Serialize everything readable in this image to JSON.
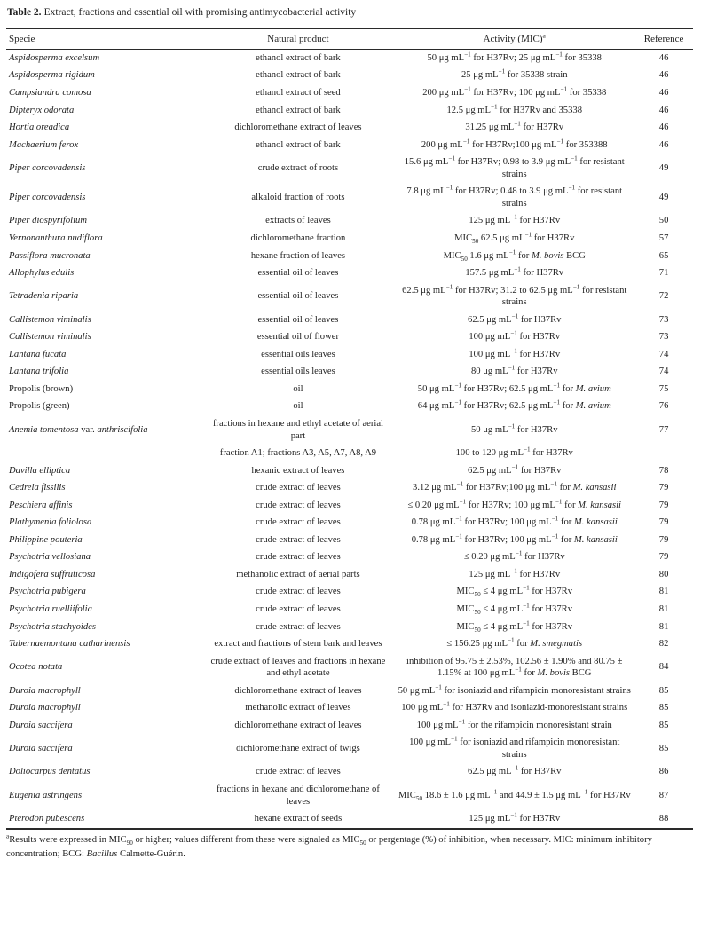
{
  "title": {
    "label": "Table 2.",
    "text": "Extract, fractions and essential oil with promising antimycobacterial activity"
  },
  "table": {
    "headers": [
      "Specie",
      "Natural product",
      "Activity (MIC)^a^",
      "Reference"
    ],
    "rows": [
      {
        "specie": "*Aspidosperma excelsum*",
        "product": "ethanol extract of bark",
        "activity": "50 μg mL^−1^ for H37Rv; 25 μg mL^−1^ for 35338",
        "ref": "46"
      },
      {
        "specie": "*Aspidosperma rigidum*",
        "product": "ethanol extract of bark",
        "activity": "25 μg mL^−1^ for 35338 strain",
        "ref": "46"
      },
      {
        "specie": "*Campsiandra comosa*",
        "product": "ethanol extract of seed",
        "activity": "200 μg mL^−1^ for H37Rv; 100 μg mL^−1^ for 35338",
        "ref": "46"
      },
      {
        "specie": "*Dipteryx odorata*",
        "product": "ethanol extract of bark",
        "activity": "12.5 μg mL^−1^ for H37Rv and 35338",
        "ref": "46"
      },
      {
        "specie": "*Hortia oreadica*",
        "product": "dichloromethane extract of leaves",
        "activity": "31.25 μg mL^−1^ for H37Rv",
        "ref": "46"
      },
      {
        "specie": "*Machaerium ferox*",
        "product": "ethanol extract of bark",
        "activity": "200 μg mL^−1^ for H37Rv;100 μg mL^−1^ for 353388",
        "ref": "46"
      },
      {
        "specie": "*Piper corcovadensis*",
        "product": "crude extract of roots",
        "activity": "15.6 μg mL^−1^ for H37Rv; 0.98 to 3.9 μg mL^−1^ for resistant strains",
        "ref": "49"
      },
      {
        "specie": "*Piper corcovadensis*",
        "product": "alkaloid fraction of roots",
        "activity": "7.8 μg mL^−1^ for H37Rv; 0.48 to 3.9 μg mL^−1^ for resistant strains",
        "ref": "49"
      },
      {
        "specie": "*Piper diospyrifolium*",
        "product": "extracts of leaves",
        "activity": "125 μg mL^−1^ for H37Rv",
        "ref": "50"
      },
      {
        "specie": "*Vernonanthura nudiflora*",
        "product": "dichloromethane fraction",
        "activity": "MIC~50~ 62.5 μg mL^−1^ for H37Rv",
        "ref": "57"
      },
      {
        "specie": "*Passiflora mucronata*",
        "product": "hexane fraction of leaves",
        "activity": "MIC~50~ 1.6 μg mL^−1^ for *M. bovis* BCG",
        "ref": "65"
      },
      {
        "specie": "*Allophylus edulis*",
        "product": "essential oil of leaves",
        "activity": "157.5 μg mL^−1^ for H37Rv",
        "ref": "71"
      },
      {
        "specie": "*Tetradenia riparia*",
        "product": "essential oil of leaves",
        "activity": "62.5 μg mL^−1^ for H37Rv; 31.2 to 62.5 μg mL^−1^ for resistant strains",
        "ref": "72"
      },
      {
        "specie": "*Callistemon viminalis*",
        "product": "essential oil of leaves",
        "activity": "62.5 μg mL^−1^ for H37Rv",
        "ref": "73"
      },
      {
        "specie": "*Callistemon viminalis*",
        "product": "essential oil of flower",
        "activity": "100 μg mL^−1^ for H37Rv",
        "ref": "73"
      },
      {
        "specie": "*Lantana fucata*",
        "product": "essential oils leaves",
        "activity": "100 μg mL^−1^ for H37Rv",
        "ref": "74"
      },
      {
        "specie": "*Lantana trifolia*",
        "product": "essential oils leaves",
        "activity": "80 μg mL^−1^ for H37Rv",
        "ref": "74"
      },
      {
        "specie": "Propolis (brown)",
        "product": "oil",
        "activity": "50 μg mL^−1^ for H37Rv; 62.5 μg mL^−1^ for *M. avium*",
        "ref": "75"
      },
      {
        "specie": "Propolis (green)",
        "product": "oil",
        "activity": "64 μg mL^−1^ for H37Rv; 62.5 μg mL^−1^ for *M. avium*",
        "ref": "76"
      },
      {
        "specie": "*Anemia tomentosa* var. *anthriscifolia*",
        "product": "fractions in hexane and ethyl acetate of aerial part",
        "activity": "50 μg mL^−1^ for H37Rv",
        "ref": "77"
      },
      {
        "specie": "",
        "product": "fraction A1; fractions A3, A5, A7, A8, A9",
        "activity": "100 to 120 μg mL^−1^ for H37Rv",
        "ref": ""
      },
      {
        "specie": "*Davilla elliptica*",
        "product": "hexanic extract of leaves",
        "activity": "62.5 μg mL^−1^ for H37Rv",
        "ref": "78"
      },
      {
        "specie": "*Cedrela fissilis*",
        "product": "crude extract of leaves",
        "activity": "3.12 μg mL^−1^ for H37Rv;100 μg mL^−1^ for *M. kansasii*",
        "ref": "79"
      },
      {
        "specie": "*Peschiera affinis*",
        "product": "crude extract of leaves",
        "activity": "≤ 0.20 μg mL^−1^ for H37Rv; 100 μg mL^−1^ for *M. kansasii*",
        "ref": "79"
      },
      {
        "specie": "*Plathymenia foliolosa*",
        "product": "crude extract of leaves",
        "activity": "0.78 μg mL^−1^ for H37Rv; 100 μg mL^−1^ for *M. kansasii*",
        "ref": "79"
      },
      {
        "specie": "*Philippine pouteria*",
        "product": "crude extract of leaves",
        "activity": "0.78 μg mL^−1^ for H37Rv; 100 μg mL^−1^ for *M. kansasii*",
        "ref": "79"
      },
      {
        "specie": "*Psychotria vellosiana*",
        "product": "crude extract of leaves",
        "activity": "≤ 0.20 μg mL^−1^ for H37Rv",
        "ref": "79"
      },
      {
        "specie": "*Indigofera suffruticosa*",
        "product": "methanolic extract of aerial parts",
        "activity": "125 μg mL^−1^ for H37Rv",
        "ref": "80"
      },
      {
        "specie": "*Psychotria pubigera*",
        "product": "crude extract of leaves",
        "activity": "MIC~50~ ≤ 4 μg mL^−1^ for H37Rv",
        "ref": "81"
      },
      {
        "specie": "*Psychotria ruelliifolia*",
        "product": "crude extract of leaves",
        "activity": "MIC~50~ ≤ 4 μg mL^−1^ for H37Rv",
        "ref": "81"
      },
      {
        "specie": "*Psychotria stachyoides*",
        "product": "crude extract of leaves",
        "activity": "MIC~50~ ≤ 4 μg mL^−1^ for H37Rv",
        "ref": "81"
      },
      {
        "specie": "*Tabernaemontana catharinensis*",
        "product": "extract and fractions of stem bark and leaves",
        "activity": "≤ 156.25 μg mL^−1^ for *M. smegmatis*",
        "ref": "82"
      },
      {
        "specie": "*Ocotea notata*",
        "product": "crude extract of leaves and fractions in hexane and ethyl acetate",
        "activity": "inhibition of 95.75 ± 2.53%, 102.56 ± 1.90% and 80.75 ± 1.15% at 100 μg mL^−1^ for *M. bovis* BCG",
        "ref": "84"
      },
      {
        "specie": "*Duroia macrophyll*",
        "product": "dichloromethane extract of leaves",
        "activity": "50 μg mL^−1^ for isoniazid and rifampicin monoresistant strains",
        "ref": "85"
      },
      {
        "specie": "*Duroia macrophyll*",
        "product": "methanolic extract of leaves",
        "activity": "100 μg mL^−1^ for H37Rv and isoniazid-monoresistant strains",
        "ref": "85"
      },
      {
        "specie": "*Duroia saccifera*",
        "product": "dichloromethane extract of leaves",
        "activity": "100 μg mL^−1^ for the rifampicin monoresistant strain",
        "ref": "85"
      },
      {
        "specie": "*Duroia saccifera*",
        "product": "dichloromethane extract of twigs",
        "activity": "100 μg mL^−1^ for isoniazid and rifampicin monoresistant strains",
        "ref": "85"
      },
      {
        "specie": "*Doliocarpus dentatus*",
        "product": "crude extract of leaves",
        "activity": "62.5 μg mL^−1^ for H37Rv",
        "ref": "86"
      },
      {
        "specie": "*Eugenia astringens*",
        "product": "fractions in hexane and dichloromethane of leaves",
        "activity": "MIC~50~ 18.6 ± 1.6 μg mL^−1^ and 44.9 ± 1.5 μg mL^−1^ for H37Rv",
        "ref": "87"
      },
      {
        "specie": "*Pterodon pubescens*",
        "product": "hexane extract of seeds",
        "activity": "125 μg mL^−1^ for H37Rv",
        "ref": "88"
      }
    ]
  },
  "footnote": "^a^Results were expressed in MIC~90~ or higher; values different from these were signaled as MIC~50~ or pergentage (%) of inhibition, when necessary. MIC: minimum inhibitory concentration; BCG: *Bacillus* Calmette-Guérin."
}
